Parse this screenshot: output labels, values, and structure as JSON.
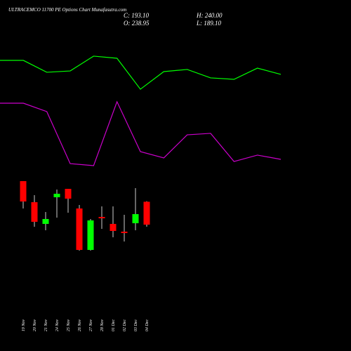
{
  "header": {
    "title": "ULTRACEMCO 11700 PE Options Chart Munafasutra.com",
    "close": "C: 193.10",
    "high": "H: 240.00",
    "open": "O: 238.95",
    "low": "L: 189.10"
  },
  "chart_data": [
    {
      "type": "line",
      "ylim": [
        0,
        100
      ],
      "series": [
        {
          "color": "#00ff00",
          "values": [
            86.3,
            86.3,
            77.4,
            78.4,
            89.5,
            87.9,
            64.7,
            77.9,
            79.5,
            73.2,
            72.1,
            80.5,
            75.8
          ]
        },
        {
          "color": "#cc00cc",
          "values": [
            54.2,
            54.2,
            47.9,
            8.9,
            7.4,
            55.3,
            17.9,
            13.2,
            30.5,
            31.6,
            10.5,
            15.3,
            12.1
          ]
        }
      ]
    },
    {
      "type": "candlestick",
      "ylim": [
        120,
        300
      ],
      "up_color": "#00ff00",
      "down_color": "#ff0000",
      "categories": [
        "19 Nov",
        "20 Nov",
        "21 Nov",
        "24 Nov",
        "25 Nov",
        "26 Nov",
        "27 Nov",
        "28 Nov",
        "01 Dec",
        "02 Dec",
        "03 Dec",
        "04 Dec"
      ],
      "open": [
        280.3,
        238.1,
        194.6,
        248.0,
        264.8,
        225.5,
        142.5,
        208.6,
        194.6,
        179.1,
        196.0,
        238.95
      ],
      "high": [
        280.3,
        252.2,
        218.5,
        263.4,
        264.8,
        232.5,
        204.4,
        229.7,
        229.7,
        212.8,
        266.3,
        240.0
      ],
      "low": [
        225.5,
        188.9,
        181.9,
        207.2,
        217.0,
        141.1,
        141.1,
        184.7,
        167.8,
        159.4,
        181.9,
        189.1
      ],
      "close": [
        239.5,
        198.8,
        204.4,
        255.0,
        245.2,
        142.5,
        201.6,
        205.8,
        180.5,
        176.3,
        214.2,
        193.1
      ]
    }
  ]
}
